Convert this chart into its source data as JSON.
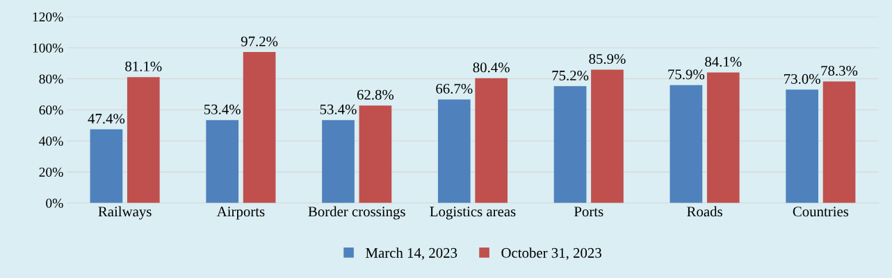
{
  "chart_data": {
    "type": "bar",
    "categories": [
      "Railways",
      "Airports",
      "Border crossings",
      "Logistics areas",
      "Ports",
      "Roads",
      "Countries"
    ],
    "series": [
      {
        "name": "March 14, 2023",
        "color": "#4f81bd",
        "values": [
          47.4,
          53.4,
          53.4,
          66.7,
          75.2,
          75.9,
          73.0
        ],
        "value_labels": [
          "47.4%",
          "53.4%",
          "53.4%",
          "66.7%",
          "75.2%",
          "75.9%",
          "73.0%"
        ]
      },
      {
        "name": "October 31, 2023",
        "color": "#c0504d",
        "values": [
          81.1,
          97.2,
          62.8,
          80.4,
          85.9,
          84.1,
          78.3
        ],
        "value_labels": [
          "81.1%",
          "97.2%",
          "62.8%",
          "80.4%",
          "85.9%",
          "84.1%",
          "78.3%"
        ]
      }
    ],
    "ylim": [
      0,
      120
    ],
    "yticks": [
      {
        "value": 0,
        "label": "0%"
      },
      {
        "value": 20,
        "label": "20%"
      },
      {
        "value": 40,
        "label": "40%"
      },
      {
        "value": 60,
        "label": "60%"
      },
      {
        "value": 80,
        "label": "80%"
      },
      {
        "value": 100,
        "label": "100%"
      },
      {
        "value": 120,
        "label": "120%"
      }
    ],
    "grid": "y",
    "legend": "bottom"
  }
}
